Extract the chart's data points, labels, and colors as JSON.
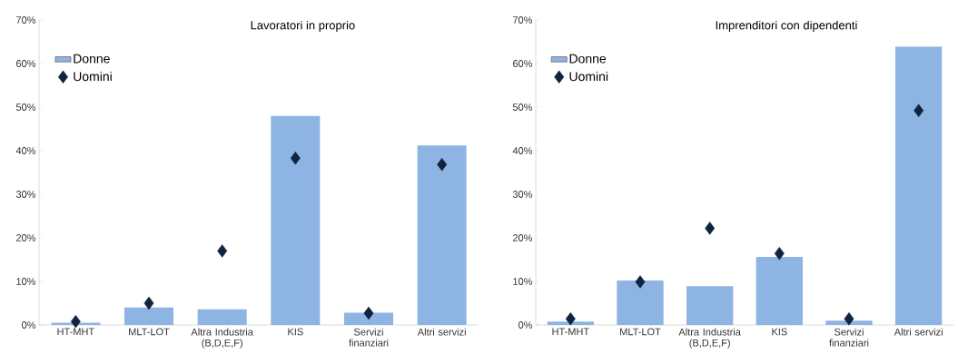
{
  "chart_data": [
    {
      "type": "bar",
      "title": "Lavoratori in proprio",
      "categories": [
        "HT-MHT",
        "MLT-LOT",
        "Altra Industria (B,D,E,F)",
        "KIS",
        "Servizi finanziari",
        "Altri servizi"
      ],
      "series": [
        {
          "name": "Donne",
          "color": "#8eb4e3",
          "values": [
            0.5,
            4,
            3.6,
            48,
            2.8,
            41.2
          ]
        },
        {
          "name": "Uomini",
          "type": "scatter",
          "marker": "diamond",
          "color": "#0f243e",
          "values": [
            0.8,
            5,
            17,
            38.3,
            2.7,
            36.8
          ]
        }
      ],
      "ylim": [
        0,
        70
      ],
      "yticks": [
        {
          "value": 0,
          "label": "0%"
        },
        {
          "value": 10,
          "label": "10%"
        },
        {
          "value": 20,
          "label": "20%"
        },
        {
          "value": 30,
          "label": "30%"
        },
        {
          "value": 40,
          "label": "40%"
        },
        {
          "value": 50,
          "label": "50%"
        },
        {
          "value": 60,
          "label": "60%"
        },
        {
          "value": 70,
          "label": "70%"
        }
      ],
      "legend": "top left",
      "grid": false
    },
    {
      "type": "bar",
      "title": "Imprenditori con dipendenti",
      "categories": [
        "HT-MHT",
        "MLT-LOT",
        "Altra Industria (B,D,E,F)",
        "KIS",
        "Servizi finanziari",
        "Altri servizi"
      ],
      "series": [
        {
          "name": "Donne",
          "color": "#8eb4e3",
          "values": [
            0.8,
            10.2,
            8.9,
            15.6,
            1.0,
            63.9
          ]
        },
        {
          "name": "Uomini",
          "type": "scatter",
          "marker": "diamond",
          "color": "#0f243e",
          "values": [
            1.4,
            9.9,
            22.2,
            16.4,
            1.4,
            49.2
          ]
        }
      ],
      "ylim": [
        0,
        70
      ],
      "yticks": [
        {
          "value": 0,
          "label": "0%"
        },
        {
          "value": 10,
          "label": "10%"
        },
        {
          "value": 20,
          "label": "20%"
        },
        {
          "value": 30,
          "label": "30%"
        },
        {
          "value": 40,
          "label": "40%"
        },
        {
          "value": 50,
          "label": "50%"
        },
        {
          "value": 60,
          "label": "60%"
        },
        {
          "value": 70,
          "label": "70%"
        }
      ],
      "legend": "top left",
      "grid": false
    }
  ]
}
